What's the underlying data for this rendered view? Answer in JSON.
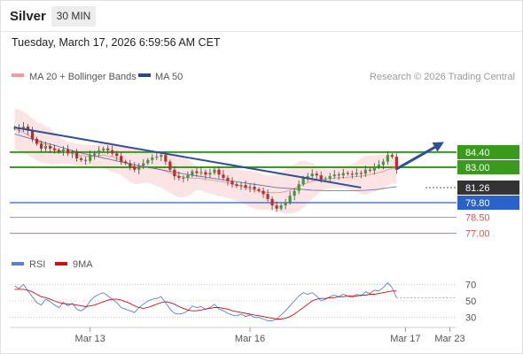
{
  "header": {
    "instrument": "Silver",
    "timeframe": "30 MIN",
    "datetime": "Tuesday, March 17, 2026 6:59:56 AM CET"
  },
  "colors": {
    "bollinger": "#f59a9a",
    "bollinger_fill": "#fde4e4",
    "ma50": "#26488f",
    "ma20": "#e06666",
    "bullish_candle": "#3c9a3c",
    "bearish_candle": "#c62828",
    "trendline": "#2f4f9a",
    "resistance": "#3a9a1e",
    "pivot": "#2a62c9",
    "support": "#e05252",
    "current_price": "#333333",
    "rsi": "#5b7fd6",
    "rsi_ma": "#cc1111"
  },
  "chart_data": [
    {
      "type": "candlestick",
      "legend": [
        {
          "name": "MA 20 + Bollinger Bands",
          "color": "#f59a9a"
        },
        {
          "name": "MA 50",
          "color": "#26488f"
        }
      ],
      "legend_position": "top-left",
      "copyright": "Research © 2026 Trading Central",
      "ylim": [
        76.6,
        86.3
      ],
      "candle_closes": [
        83.9,
        83.8,
        83.95,
        83.7,
        83.2,
        82.9,
        82.6,
        82.75,
        82.6,
        82.5,
        82.4,
        82.55,
        82.3,
        82.35,
        82.0,
        81.9,
        81.85,
        82.2,
        82.3,
        82.5,
        82.6,
        82.5,
        82.3,
        82.15,
        81.8,
        81.7,
        81.5,
        81.3,
        81.55,
        81.7,
        81.9,
        82.05,
        82.1,
        82.2,
        81.8,
        81.3,
        80.9,
        80.8,
        80.8,
        80.95,
        81.2,
        81.1,
        81.15,
        81.0,
        81.1,
        81.3,
        81.0,
        80.8,
        80.6,
        80.4,
        80.3,
        80.35,
        80.2,
        80.25,
        80.1,
        80.0,
        79.8,
        79.5,
        79.1,
        78.9,
        79.1,
        79.3,
        79.7,
        80.0,
        80.4,
        80.8,
        80.9,
        81.05,
        80.95,
        80.7,
        80.75,
        80.9,
        81.0,
        80.95,
        81.1,
        81.05,
        81.0,
        81.1,
        81.05,
        81.3,
        81.25,
        81.5,
        81.6,
        81.8,
        82.2,
        82.1,
        81.3
      ],
      "ma20": [
        83.8,
        83.75,
        83.6,
        83.45,
        83.25,
        83.05,
        82.95,
        82.85,
        82.75,
        82.6,
        82.5,
        82.42,
        82.35,
        82.3,
        82.22,
        82.18,
        82.15,
        82.12,
        82.15,
        82.18,
        82.2,
        82.15,
        82.1,
        82.0,
        81.88,
        81.75,
        81.6,
        81.5,
        81.45,
        81.45,
        81.42,
        81.4,
        81.35,
        81.3,
        81.2,
        81.1,
        81.0,
        80.9,
        80.85,
        80.8,
        80.78,
        80.78,
        80.75,
        80.7,
        80.68,
        80.65,
        80.6,
        80.55,
        80.5,
        80.42,
        80.35,
        80.28,
        80.2,
        80.12,
        80.05,
        79.98,
        79.92,
        79.9,
        79.88,
        79.88,
        79.9,
        79.95,
        80.05,
        80.15,
        80.28,
        80.4,
        80.5,
        80.6,
        80.65,
        80.7,
        80.72,
        80.75,
        80.78,
        80.8,
        80.82,
        80.84,
        80.86,
        80.88,
        80.9,
        80.95,
        81.0,
        81.05,
        81.12,
        81.2,
        81.3,
        81.38,
        81.4
      ],
      "ma50": [
        83.5,
        83.42,
        83.34,
        83.26,
        83.18,
        83.1,
        83.02,
        82.95,
        82.88,
        82.8,
        82.72,
        82.64,
        82.56,
        82.48,
        82.4,
        82.33,
        82.26,
        82.2,
        82.14,
        82.08,
        82.02,
        81.96,
        81.9,
        81.84,
        81.78,
        81.72,
        81.66,
        81.6,
        81.55,
        81.5,
        81.45,
        81.4,
        81.35,
        81.3,
        81.25,
        81.2,
        81.15,
        81.1,
        81.05,
        81.0,
        80.96,
        80.92,
        80.88,
        80.84,
        80.8,
        80.76,
        80.72,
        80.68,
        80.64,
        80.6,
        80.56,
        80.52,
        80.48,
        80.44,
        80.4,
        80.36,
        80.32,
        80.28,
        80.24,
        80.2,
        80.18,
        80.16,
        80.14,
        80.12,
        80.1,
        80.08,
        80.06,
        80.04,
        80.03,
        80.02,
        80.01,
        80.0,
        80.0,
        80.0,
        80.0,
        80.0,
        80.0,
        80.01,
        80.02,
        80.03,
        80.05,
        80.07,
        80.1,
        80.14,
        80.18,
        80.22,
        80.25
      ],
      "trendline_from": [
        0,
        83.9
      ],
      "trendline_to": [
        78,
        80.2
      ],
      "forecast_from": [
        86,
        81.35
      ],
      "forecast_to": [
        96,
        82.9
      ],
      "levels": [
        {
          "label": "84.40",
          "value": 82.38,
          "kind": "resistance"
        },
        {
          "label": "83.00",
          "value": 81.45,
          "kind": "resistance"
        },
        {
          "label": "81.26",
          "value": 80.2,
          "kind": "current"
        },
        {
          "label": "79.80",
          "value": 79.27,
          "kind": "pivot"
        },
        {
          "label": "78.50",
          "value": 78.37,
          "kind": "support"
        },
        {
          "label": "77.00",
          "value": 77.38,
          "kind": "support"
        }
      ]
    },
    {
      "type": "line",
      "legend": [
        {
          "name": "RSI",
          "color": "#5b7fd6"
        },
        {
          "name": "9MA",
          "color": "#cc1111"
        }
      ],
      "ylim": [
        20,
        80
      ],
      "y_ticks": [
        "70",
        "50",
        "30"
      ],
      "rsi": [
        68,
        65,
        70,
        62,
        55,
        48,
        45,
        52,
        49,
        45,
        42,
        48,
        44,
        47,
        40,
        38,
        42,
        50,
        55,
        58,
        60,
        56,
        52,
        48,
        42,
        40,
        38,
        36,
        42,
        46,
        50,
        52,
        53,
        55,
        48,
        40,
        35,
        34,
        35,
        38,
        44,
        42,
        43,
        40,
        42,
        46,
        40,
        38,
        35,
        33,
        32,
        34,
        31,
        33,
        30,
        30,
        28,
        26,
        26,
        28,
        33,
        38,
        44,
        50,
        56,
        60,
        58,
        60,
        56,
        50,
        52,
        55,
        57,
        55,
        58,
        56,
        54,
        58,
        56,
        61,
        59,
        63,
        62,
        66,
        72,
        66,
        54
      ],
      "rsi_ma": [
        64,
        64,
        64,
        63,
        61,
        58,
        55,
        54,
        52,
        50,
        48,
        47,
        46,
        46,
        45,
        44,
        43,
        44,
        45,
        47,
        49,
        51,
        52,
        52,
        51,
        49,
        47,
        44,
        42,
        41,
        42,
        44,
        46,
        48,
        49,
        48,
        46,
        43,
        41,
        39,
        38,
        38,
        39,
        40,
        41,
        42,
        42,
        41,
        40,
        38,
        37,
        36,
        35,
        34,
        33,
        32,
        31,
        30,
        29,
        28,
        28,
        29,
        31,
        34,
        38,
        42,
        46,
        50,
        52,
        53,
        53,
        54,
        54,
        55,
        55,
        56,
        56,
        56,
        57,
        57,
        58,
        58,
        59,
        60,
        61,
        62,
        62
      ]
    }
  ],
  "x_axis": {
    "labels": [
      "Mar 13",
      "Mar 16",
      "Mar 17",
      "Mar 23"
    ]
  }
}
